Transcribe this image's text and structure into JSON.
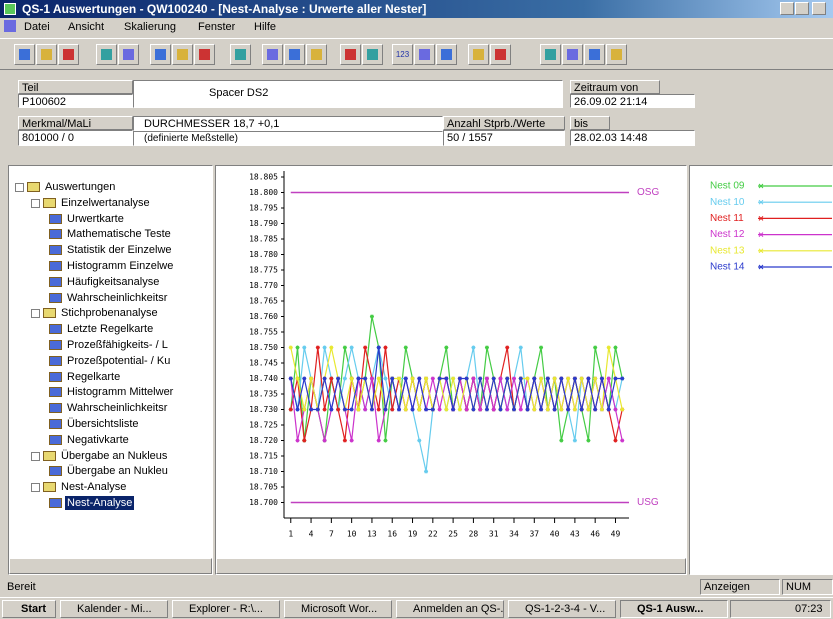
{
  "window": {
    "title": "QS-1 Auswertungen - QW100240 - [Nest-Analyse : Urwerte aller Nester]",
    "menu": [
      "Datei",
      "Ansicht",
      "Skalierung",
      "Fenster",
      "Hilfe"
    ],
    "toolbar_text": "123"
  },
  "info": {
    "teil_label": "Teil",
    "teil": "P100602",
    "bezeichnung": "Spacer DS2",
    "merkmal_label": "Merkmal/MaLi",
    "merkmal": "801000 / 0",
    "merkmal_text": "DURCHMESSER 18,7 +0,1",
    "merkmal_note": "(definierte Meßstelle)",
    "anzahl_label": "Anzahl Stprb./Werte",
    "anzahl": "50 / 1557",
    "von_label": "Zeitraum von",
    "von": "26.09.02 21:14",
    "bis_label": "bis",
    "bis": "28.02.03 14:48"
  },
  "tree": {
    "label": "Auswertungen",
    "children": [
      {
        "label": "Einzelwertanalyse",
        "children": [
          {
            "label": "Urwertkarte"
          },
          {
            "label": "Mathematische Teste"
          },
          {
            "label": "Statistik der Einzelwe"
          },
          {
            "label": "Histogramm Einzelwe"
          },
          {
            "label": "Häufigkeitsanalyse"
          },
          {
            "label": "Wahrscheinlichkeitsr"
          }
        ]
      },
      {
        "label": "Stichprobenanalyse",
        "children": [
          {
            "label": "Letzte Regelkarte"
          },
          {
            "label": "Prozeßfähigkeits- / L"
          },
          {
            "label": "Prozeßpotential- / Ku"
          },
          {
            "label": "Regelkarte"
          },
          {
            "label": "Histogramm Mittelwer"
          },
          {
            "label": "Wahrscheinlichkeitsr"
          },
          {
            "label": "Übersichtsliste"
          },
          {
            "label": "Negativkarte"
          }
        ]
      },
      {
        "label": "Übergabe an Nukleus",
        "children": [
          {
            "label": "Übergabe an Nukleu"
          }
        ]
      },
      {
        "label": "Nest-Analyse",
        "children": [
          {
            "label": "Nest-Analyse",
            "selected": true
          }
        ]
      }
    ]
  },
  "chart_data": {
    "type": "line",
    "legend": "right",
    "grid": false,
    "x": [
      1,
      2,
      3,
      4,
      5,
      6,
      7,
      8,
      9,
      10,
      11,
      12,
      13,
      14,
      15,
      16,
      17,
      18,
      19,
      20,
      21,
      22,
      23,
      24,
      25,
      26,
      27,
      28,
      29,
      30,
      31,
      32,
      33,
      34,
      35,
      36,
      37,
      38,
      39,
      40,
      41,
      42,
      43,
      44,
      45,
      46,
      47,
      48,
      49,
      50
    ],
    "xlim": [
      0,
      51
    ],
    "xticks": [
      1,
      4,
      7,
      10,
      13,
      16,
      19,
      22,
      25,
      28,
      31,
      34,
      37,
      40,
      43,
      46,
      49
    ],
    "ylim": [
      18.695,
      18.805
    ],
    "yticks": [
      18.805,
      {
        "value": 18.8,
        "label": "18.800"
      },
      18.795,
      {
        "value": 18.79,
        "label": "18.790"
      },
      18.785,
      {
        "value": 18.78,
        "label": "18.780"
      },
      18.775,
      {
        "value": 18.77,
        "label": "18.770"
      },
      18.765,
      {
        "value": 18.76,
        "label": "18.760"
      },
      18.755,
      {
        "value": 18.75,
        "label": "18.750"
      },
      18.745,
      {
        "value": 18.74,
        "label": "18.740"
      },
      18.735,
      {
        "value": 18.73,
        "label": "18.730"
      },
      18.725,
      {
        "value": 18.72,
        "label": "18.720"
      },
      18.715,
      {
        "value": 18.71,
        "label": "18.710"
      },
      18.705,
      {
        "value": 18.7,
        "label": "18.700"
      }
    ],
    "limits": [
      {
        "label": "OSG",
        "value": 18.8,
        "color": "#c040c0"
      },
      {
        "label": "USG",
        "value": 18.7,
        "color": "#c040c0"
      }
    ],
    "series": [
      {
        "name": "Nest 09",
        "color": "#44cc44",
        "values": [
          18.73,
          18.75,
          18.72,
          18.74,
          18.73,
          18.72,
          18.74,
          18.73,
          18.75,
          18.74,
          18.73,
          18.74,
          18.76,
          18.75,
          18.72,
          18.74,
          18.73,
          18.75,
          18.74,
          18.73,
          18.74,
          18.73,
          18.74,
          18.75,
          18.73,
          18.74,
          18.73,
          18.74,
          18.73,
          18.75,
          18.74,
          18.73,
          18.74,
          18.73,
          18.74,
          18.73,
          18.74,
          18.75,
          18.73,
          18.74,
          18.72,
          18.73,
          18.74,
          18.73,
          18.72,
          18.75,
          18.74,
          18.73,
          18.75,
          18.74
        ]
      },
      {
        "name": "Nest 10",
        "color": "#66ccee",
        "values": [
          18.74,
          18.73,
          18.75,
          18.74,
          18.73,
          18.75,
          18.74,
          18.73,
          18.74,
          18.75,
          18.74,
          18.73,
          18.74,
          18.75,
          18.74,
          18.73,
          18.74,
          18.74,
          18.73,
          18.72,
          18.71,
          18.73,
          18.74,
          18.73,
          18.74,
          18.73,
          18.74,
          18.75,
          18.73,
          18.74,
          18.73,
          18.74,
          18.73,
          18.74,
          18.75,
          18.73,
          18.74,
          18.73,
          18.74,
          18.73,
          18.74,
          18.73,
          18.72,
          18.74,
          18.73,
          18.74,
          18.73,
          18.74,
          18.73,
          18.74
        ]
      },
      {
        "name": "Nest 11",
        "color": "#e02020",
        "values": [
          18.73,
          18.74,
          18.72,
          18.73,
          18.75,
          18.73,
          18.74,
          18.73,
          18.72,
          18.74,
          18.73,
          18.75,
          18.74,
          18.73,
          18.75,
          18.73,
          18.74,
          18.73,
          18.74,
          18.73,
          18.74,
          18.73,
          18.74,
          18.74,
          18.73,
          18.74,
          18.73,
          18.74,
          18.73,
          18.74,
          18.73,
          18.74,
          18.75,
          18.73,
          18.74,
          18.73,
          18.74,
          18.73,
          18.74,
          18.73,
          18.74,
          18.73,
          18.74,
          18.73,
          18.74,
          18.73,
          18.74,
          18.73,
          18.72,
          18.73
        ]
      },
      {
        "name": "Nest 12",
        "color": "#cc33cc",
        "values": [
          18.74,
          18.72,
          18.73,
          18.74,
          18.73,
          18.72,
          18.73,
          18.74,
          18.73,
          18.72,
          18.74,
          18.73,
          18.74,
          18.72,
          18.73,
          18.74,
          18.73,
          18.74,
          18.73,
          18.74,
          18.73,
          18.74,
          18.73,
          18.74,
          18.73,
          18.74,
          18.73,
          18.74,
          18.73,
          18.74,
          18.73,
          18.74,
          18.73,
          18.74,
          18.73,
          18.74,
          18.73,
          18.74,
          18.73,
          18.74,
          18.73,
          18.74,
          18.73,
          18.74,
          18.73,
          18.74,
          18.73,
          18.74,
          18.73,
          18.72
        ]
      },
      {
        "name": "Nest 13",
        "color": "#e8e830",
        "values": [
          18.75,
          18.74,
          18.73,
          18.74,
          18.73,
          18.74,
          18.75,
          18.74,
          18.73,
          18.74,
          18.73,
          18.74,
          18.73,
          18.74,
          18.73,
          18.74,
          18.74,
          18.73,
          18.74,
          18.73,
          18.74,
          18.73,
          18.74,
          18.73,
          18.74,
          18.73,
          18.74,
          18.73,
          18.74,
          18.73,
          18.74,
          18.73,
          18.74,
          18.73,
          18.74,
          18.74,
          18.73,
          18.74,
          18.73,
          18.74,
          18.73,
          18.74,
          18.73,
          18.74,
          18.73,
          18.74,
          18.73,
          18.75,
          18.74,
          18.73
        ]
      },
      {
        "name": "Nest 14",
        "color": "#2a3acc",
        "values": [
          18.74,
          18.73,
          18.74,
          18.73,
          18.73,
          18.74,
          18.73,
          18.74,
          18.73,
          18.73,
          18.74,
          18.74,
          18.73,
          18.75,
          18.73,
          18.74,
          18.73,
          18.74,
          18.73,
          18.74,
          18.73,
          18.73,
          18.74,
          18.74,
          18.73,
          18.74,
          18.74,
          18.73,
          18.74,
          18.73,
          18.74,
          18.73,
          18.74,
          18.73,
          18.74,
          18.73,
          18.74,
          18.73,
          18.74,
          18.73,
          18.74,
          18.73,
          18.74,
          18.73,
          18.74,
          18.73,
          18.74,
          18.73,
          18.74,
          18.74
        ]
      }
    ]
  },
  "status": {
    "text": "Bereit",
    "panels": [
      "Anzeigen",
      "NUM"
    ]
  },
  "taskbar": {
    "start": "Start",
    "tasks": [
      "Kalender - Mi...",
      "Explorer - R:\\...",
      "Microsoft Wor...",
      "Anmelden an QS-...",
      "QS-1-2-3-4 - V...",
      "QS-1 Ausw..."
    ],
    "clock": "07:23"
  }
}
